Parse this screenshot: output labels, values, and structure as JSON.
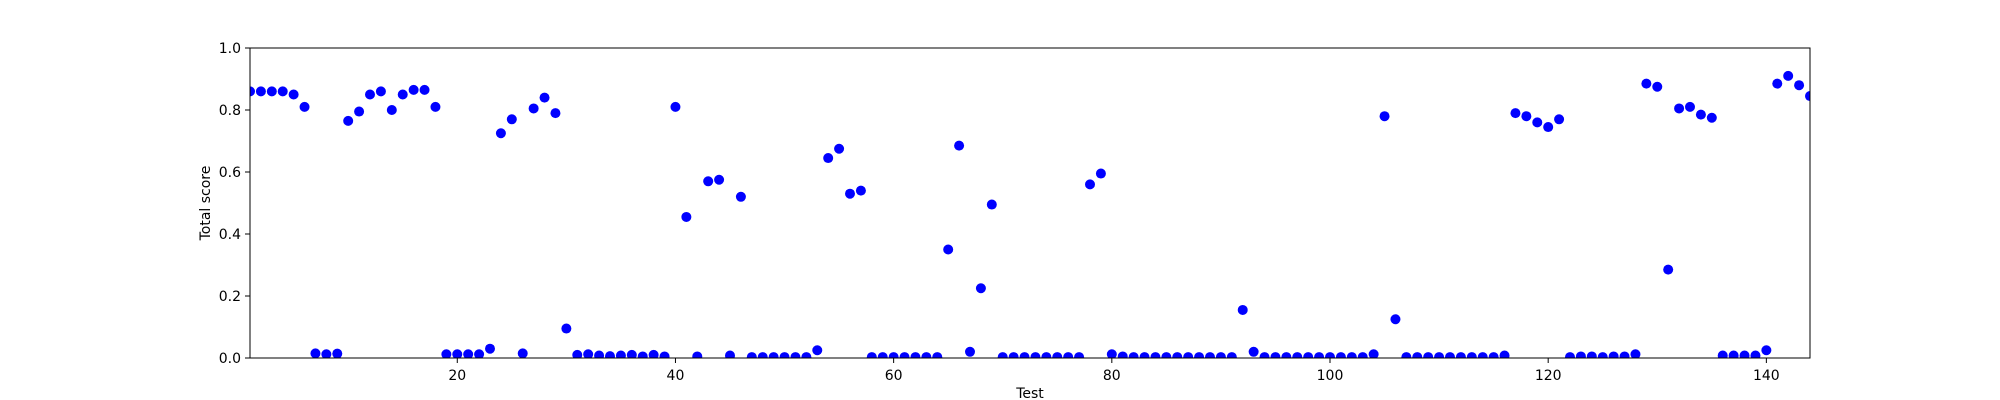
{
  "chart_data": {
    "type": "scatter",
    "xlabel": "Test",
    "ylabel": "Total score",
    "xlim": [
      1,
      144
    ],
    "ylim": [
      0.0,
      1.0
    ],
    "xticks": [
      20,
      40,
      60,
      80,
      100,
      120,
      140
    ],
    "xtick_labels": [
      "20",
      "40",
      "60",
      "80",
      "100",
      "120",
      "140"
    ],
    "yticks": [
      0.0,
      0.2,
      0.4,
      0.6,
      0.8,
      1.0
    ],
    "ytick_labels": [
      "0.0",
      "0.2",
      "0.4",
      "0.6",
      "0.8",
      "1.0"
    ],
    "grid": false,
    "marker_color": "#0000ff",
    "x": [
      1,
      2,
      3,
      4,
      5,
      6,
      7,
      8,
      9,
      10,
      11,
      12,
      13,
      14,
      15,
      16,
      17,
      18,
      19,
      20,
      21,
      22,
      23,
      24,
      25,
      26,
      27,
      28,
      29,
      30,
      31,
      32,
      33,
      34,
      35,
      36,
      37,
      38,
      39,
      40,
      41,
      42,
      43,
      44,
      45,
      46,
      47,
      48,
      49,
      50,
      51,
      52,
      53,
      54,
      55,
      56,
      57,
      58,
      59,
      60,
      61,
      62,
      63,
      64,
      65,
      66,
      67,
      68,
      69,
      70,
      71,
      72,
      73,
      74,
      75,
      76,
      77,
      78,
      79,
      80,
      81,
      82,
      83,
      84,
      85,
      86,
      87,
      88,
      89,
      90,
      91,
      92,
      93,
      94,
      95,
      96,
      97,
      98,
      99,
      100,
      101,
      102,
      103,
      104,
      105,
      106,
      107,
      108,
      109,
      110,
      111,
      112,
      113,
      114,
      115,
      116,
      117,
      118,
      119,
      120,
      121,
      122,
      123,
      124,
      125,
      126,
      127,
      128,
      129,
      130,
      131,
      132,
      133,
      134,
      135,
      136,
      137,
      138,
      139,
      140,
      141,
      142,
      143,
      144
    ],
    "y": [
      0.86,
      0.86,
      0.86,
      0.86,
      0.85,
      0.81,
      0.015,
      0.012,
      0.014,
      0.765,
      0.795,
      0.85,
      0.86,
      0.8,
      0.85,
      0.865,
      0.865,
      0.81,
      0.012,
      0.012,
      0.012,
      0.012,
      0.03,
      0.725,
      0.77,
      0.015,
      0.805,
      0.84,
      0.79,
      0.095,
      0.01,
      0.012,
      0.008,
      0.006,
      0.008,
      0.01,
      0.005,
      0.01,
      0.005,
      0.81,
      0.455,
      0.005,
      0.57,
      0.575,
      0.008,
      0.52,
      0.003,
      0.003,
      0.003,
      0.003,
      0.003,
      0.003,
      0.025,
      0.645,
      0.675,
      0.53,
      0.54,
      0.003,
      0.003,
      0.003,
      0.003,
      0.003,
      0.003,
      0.003,
      0.35,
      0.685,
      0.02,
      0.225,
      0.495,
      0.003,
      0.003,
      0.003,
      0.003,
      0.003,
      0.003,
      0.003,
      0.003,
      0.56,
      0.595,
      0.012,
      0.005,
      0.003,
      0.003,
      0.003,
      0.003,
      0.003,
      0.003,
      0.003,
      0.003,
      0.003,
      0.003,
      0.155,
      0.02,
      0.003,
      0.003,
      0.003,
      0.003,
      0.003,
      0.003,
      0.003,
      0.003,
      0.003,
      0.003,
      0.012,
      0.78,
      0.125,
      0.003,
      0.003,
      0.003,
      0.003,
      0.003,
      0.003,
      0.003,
      0.003,
      0.003,
      0.008,
      0.79,
      0.78,
      0.76,
      0.745,
      0.77,
      0.003,
      0.005,
      0.005,
      0.003,
      0.005,
      0.005,
      0.012,
      0.885,
      0.875,
      0.285,
      0.805,
      0.81,
      0.785,
      0.775,
      0.008,
      0.008,
      0.008,
      0.008,
      0.025,
      0.885,
      0.91,
      0.88,
      0.845
    ]
  }
}
